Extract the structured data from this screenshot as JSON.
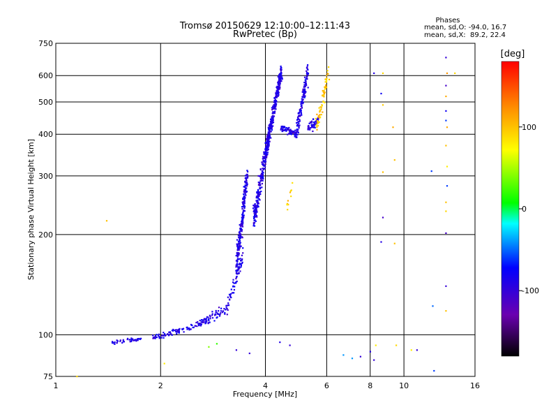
{
  "chart_data": {
    "type": "scatter",
    "title": "Tromsø 20150629 12:10:00–12:11:43",
    "subtitle": "RwPretec (Bp)",
    "xlabel": "Frequency [MHz]",
    "ylabel": "Stationary phase Virtual Height [km]",
    "x_scale": "log",
    "y_scale": "log",
    "xlim": [
      1,
      16
    ],
    "ylim": [
      75,
      750
    ],
    "x_ticks": [
      1,
      2,
      4,
      6,
      8,
      10,
      16
    ],
    "y_ticks": [
      75,
      100,
      200,
      300,
      400,
      500,
      600,
      750
    ],
    "x_gridlines": [
      2,
      4,
      6,
      8,
      10
    ],
    "y_gridlines": [
      100,
      200,
      300,
      400,
      500,
      600
    ],
    "grid": true,
    "stats": {
      "header": "Phases",
      "line_o": "mean, sd,O: -94.0, 16.7",
      "line_x": "mean, sd,X:  89.2, 22.4"
    },
    "colorbar": {
      "label": "[deg]",
      "range": [
        -180,
        180
      ],
      "ticks": [
        100,
        0,
        -100
      ]
    },
    "series": [
      {
        "color_phase": -90,
        "segments": [
          {
            "f0": 1.45,
            "f1": 1.75,
            "h0": 95,
            "h1": 97,
            "n": 45,
            "sd": 0.012
          },
          {
            "f0": 1.9,
            "f1": 2.5,
            "h0": 98,
            "h1": 106,
            "n": 70,
            "sd": 0.015
          },
          {
            "f0": 2.5,
            "f1": 3.1,
            "h0": 106,
            "h1": 120,
            "n": 80,
            "sd": 0.03
          },
          {
            "f0": 3.1,
            "f1": 3.45,
            "h0": 120,
            "h1": 175,
            "n": 60,
            "sd": 0.05
          },
          {
            "f0": 3.3,
            "f1": 3.55,
            "h0": 160,
            "h1": 300,
            "n": 220,
            "sd": 0.08
          },
          {
            "f0": 3.7,
            "f1": 4.1,
            "h0": 220,
            "h1": 400,
            "n": 260,
            "sd": 0.06
          },
          {
            "f0": 4.0,
            "f1": 4.45,
            "h0": 350,
            "h1": 620,
            "n": 300,
            "sd": 0.05
          },
          {
            "f0": 4.4,
            "f1": 4.9,
            "h0": 420,
            "h1": 400,
            "n": 70,
            "sd": 0.02
          },
          {
            "f0": 4.9,
            "f1": 5.3,
            "h0": 400,
            "h1": 620,
            "n": 140,
            "sd": 0.05
          },
          {
            "f0": 5.3,
            "f1": 5.7,
            "h0": 420,
            "h1": 440,
            "n": 50,
            "sd": 0.03
          }
        ]
      },
      {
        "color_phase": 95,
        "segments": [
          {
            "f0": 5.6,
            "f1": 6.05,
            "h0": 420,
            "h1": 600,
            "n": 70,
            "sd": 0.05
          },
          {
            "f0": 4.6,
            "f1": 4.8,
            "h0": 240,
            "h1": 285,
            "n": 12,
            "sd": 0.03
          }
        ]
      }
    ],
    "scattered_points": [
      [
        1.4,
        220,
        100
      ],
      [
        1.15,
        75,
        90
      ],
      [
        2.05,
        82,
        80
      ],
      [
        2.75,
        92,
        40
      ],
      [
        2.9,
        94,
        20
      ],
      [
        3.3,
        90,
        -100
      ],
      [
        3.6,
        88,
        -100
      ],
      [
        4.4,
        95,
        -90
      ],
      [
        4.7,
        93,
        -100
      ],
      [
        6.7,
        87,
        -40
      ],
      [
        7.1,
        85,
        -40
      ],
      [
        7.5,
        86,
        -100
      ],
      [
        8.0,
        89,
        -90
      ],
      [
        8.2,
        84,
        -100
      ],
      [
        8.2,
        610,
        -90
      ],
      [
        8.6,
        530,
        -80
      ],
      [
        8.7,
        610,
        90
      ],
      [
        8.7,
        490,
        95
      ],
      [
        8.7,
        308,
        100
      ],
      [
        8.7,
        225,
        -110
      ],
      [
        8.6,
        190,
        -90
      ],
      [
        9.3,
        420,
        110
      ],
      [
        9.4,
        335,
        100
      ],
      [
        9.4,
        188,
        100
      ],
      [
        9.5,
        93,
        90
      ],
      [
        8.3,
        93,
        80
      ],
      [
        10.5,
        90,
        80
      ],
      [
        10.9,
        90,
        -100
      ],
      [
        12.2,
        78,
        -60
      ],
      [
        12.0,
        310,
        -60
      ],
      [
        12.1,
        122,
        -50
      ],
      [
        13.2,
        680,
        -100
      ],
      [
        13.2,
        560,
        -110
      ],
      [
        13.2,
        470,
        -80
      ],
      [
        13.2,
        440,
        -60
      ],
      [
        13.3,
        420,
        110
      ],
      [
        13.3,
        610,
        120
      ],
      [
        13.2,
        520,
        110
      ],
      [
        13.2,
        370,
        100
      ],
      [
        13.3,
        320,
        80
      ],
      [
        13.3,
        280,
        -60
      ],
      [
        13.2,
        250,
        100
      ],
      [
        13.2,
        235,
        90
      ],
      [
        13.2,
        202,
        -110
      ],
      [
        13.2,
        140,
        -100
      ],
      [
        13.2,
        118,
        100
      ],
      [
        14.0,
        610,
        90
      ]
    ]
  }
}
